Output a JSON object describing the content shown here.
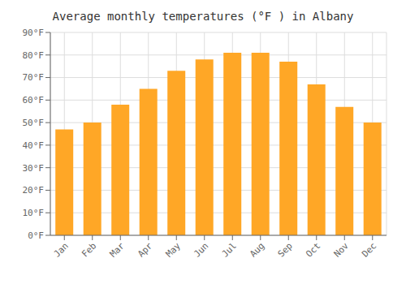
{
  "chart_data": {
    "type": "bar",
    "title": "Average monthly temperatures (°F ) in Albany",
    "categories": [
      "Jan",
      "Feb",
      "Mar",
      "Apr",
      "May",
      "Jun",
      "Jul",
      "Aug",
      "Sep",
      "Oct",
      "Nov",
      "Dec"
    ],
    "values": [
      47,
      50,
      58,
      65,
      73,
      78,
      81,
      81,
      77,
      67,
      57,
      50
    ],
    "color": "#FFA726",
    "ylim": [
      0,
      90
    ],
    "yticks": [
      {
        "value": 0,
        "label": "0°F"
      },
      {
        "value": 10,
        "label": "10°F"
      },
      {
        "value": 20,
        "label": "20°F"
      },
      {
        "value": 30,
        "label": "30°F"
      },
      {
        "value": 40,
        "label": "40°F"
      },
      {
        "value": 50,
        "label": "50°F"
      },
      {
        "value": 60,
        "label": "60°F"
      },
      {
        "value": 70,
        "label": "70°F"
      },
      {
        "value": 80,
        "label": "80°F"
      },
      {
        "value": 90,
        "label": "90°F"
      }
    ],
    "grid": true
  }
}
